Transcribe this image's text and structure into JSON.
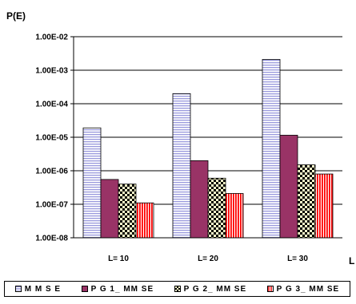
{
  "chart_data": {
    "type": "bar",
    "ylabel": "P(E)",
    "xlabel": "L",
    "yscale": "log",
    "ylim": [
      1e-08,
      0.01
    ],
    "ytick_labels": [
      "1.00E-08",
      "1.00E-07",
      "1.00E-06",
      "1.00E-05",
      "1.00E-04",
      "1.00E-03",
      "1.00E-02"
    ],
    "categories": [
      "L= 10",
      "L= 20",
      "L= 30"
    ],
    "grid": "horizontal",
    "legend_position": "bottom",
    "series": [
      {
        "name": "MMSE",
        "values": [
          1.9e-05,
          0.0002,
          0.0021
        ],
        "color": "#ccccff",
        "pattern": "horizontal-lines"
      },
      {
        "name": "PG1_MMSE",
        "values": [
          5.5e-07,
          2e-06,
          1.15e-05
        ],
        "color": "#993366",
        "pattern": "solid"
      },
      {
        "name": "PG2_MMSE",
        "values": [
          4e-07,
          6e-07,
          1.5e-06
        ],
        "color": "#ffffcc",
        "pattern": "checker"
      },
      {
        "name": "PG3_MMSE",
        "values": [
          1.1e-07,
          2.1e-07,
          8e-07
        ],
        "color": "#ff0000",
        "pattern": "vertical-lines"
      }
    ]
  },
  "legend": {
    "items": [
      "M M S E",
      "P G 1_ MM SE",
      "P G 2_ MM SE",
      "P G 3_ MM SE"
    ]
  }
}
